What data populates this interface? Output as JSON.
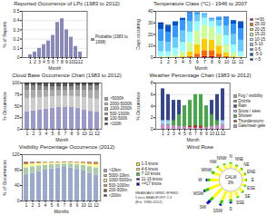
{
  "chart_data": [
    {
      "type": "bar",
      "title": "Reported Occurrence of LPc (1983 to 2012)",
      "xlabel": "Month",
      "ylabel": "% of Reports",
      "categories": [
        "1",
        "2",
        "3",
        "4",
        "5",
        "6",
        "7",
        "8",
        "9",
        "10",
        "11",
        "12"
      ],
      "series": [
        {
          "name": "Probable (1983 to 1998)",
          "color": "#8888bb",
          "values": [
            0.03,
            0.06,
            0.1,
            0.14,
            0.18,
            0.24,
            0.38,
            0.42,
            0.3,
            0.22,
            0.12,
            0.06
          ]
        }
      ],
      "ylim": [
        0,
        0.5
      ],
      "yticks": [
        0,
        0.1,
        0.2,
        0.3,
        0.4,
        0.5
      ],
      "grid": true,
      "legend": "right"
    },
    {
      "type": "bar",
      "title": "Temperature Class (°C) - 1946 to 2007",
      "xlabel": "Month",
      "ylabel": "Days occurring",
      "categories": [
        "1",
        "2",
        "3",
        "4",
        "5",
        "6",
        "7",
        "8",
        "9",
        "10",
        "11",
        "12"
      ],
      "stacked": true,
      "series": [
        {
          "name": ">=30",
          "color": "#cc0000",
          "values": [
            0,
            0,
            0,
            0,
            0,
            0,
            1,
            1,
            0,
            0,
            0,
            0
          ]
        },
        {
          "name": "25-30",
          "color": "#ff6600",
          "values": [
            0,
            0,
            0,
            0,
            1,
            3,
            5,
            5,
            3,
            1,
            0,
            0
          ]
        },
        {
          "name": "20-25",
          "color": "#ffcc00",
          "values": [
            0,
            0,
            0,
            1,
            4,
            8,
            10,
            9,
            7,
            3,
            1,
            0
          ]
        },
        {
          "name": "15-20",
          "color": "#ccff99",
          "values": [
            1,
            1,
            2,
            4,
            8,
            12,
            12,
            11,
            10,
            7,
            3,
            1
          ]
        },
        {
          "name": "10-15",
          "color": "#99ffff",
          "values": [
            4,
            4,
            6,
            8,
            9,
            8,
            6,
            5,
            7,
            8,
            7,
            4
          ]
        },
        {
          "name": "5-10",
          "color": "#66ccff",
          "values": [
            9,
            8,
            9,
            10,
            9,
            6,
            3,
            2,
            5,
            8,
            9,
            10
          ]
        },
        {
          "name": "0-5",
          "color": "#3399ff",
          "values": [
            10,
            9,
            10,
            9,
            7,
            2,
            1,
            1,
            3,
            7,
            9,
            10
          ]
        },
        {
          "name": "-5-0",
          "color": "#0055cc",
          "values": [
            5,
            5,
            4,
            2,
            1,
            0,
            0,
            0,
            0,
            1,
            3,
            5
          ]
        },
        {
          "name": "<-5",
          "color": "#003399",
          "values": [
            1,
            1,
            0,
            0,
            0,
            0,
            0,
            0,
            0,
            0,
            0,
            1
          ]
        }
      ],
      "ylim": [
        0,
        40
      ],
      "yticks": [
        0,
        10,
        20,
        30,
        40
      ],
      "grid": true,
      "legend": "right"
    },
    {
      "type": "bar",
      "title": "Cloud Base Occurrence Chart (1983 to 2012)",
      "xlabel": "Month",
      "ylabel": "% Occurrence",
      "categories": [
        "1",
        "2",
        "3",
        "4",
        "5",
        "6",
        "7",
        "8",
        "9",
        "10",
        "11",
        "12"
      ],
      "stacked": true,
      "series": [
        {
          "name": ">5000ft",
          "color": "#9999cc",
          "values": [
            38,
            40,
            42,
            44,
            46,
            48,
            48,
            47,
            45,
            42,
            39,
            37
          ]
        },
        {
          "name": "2000-5000ft",
          "color": "#cccccc",
          "values": [
            28,
            27,
            26,
            25,
            24,
            23,
            23,
            24,
            25,
            26,
            27,
            28
          ]
        },
        {
          "name": "1000-2000ft",
          "color": "#aaaaaa",
          "values": [
            18,
            17,
            16,
            14,
            13,
            12,
            12,
            13,
            14,
            16,
            17,
            18
          ]
        },
        {
          "name": "500-1000ft",
          "color": "#888888",
          "values": [
            10,
            9,
            9,
            8,
            8,
            8,
            8,
            8,
            9,
            9,
            10,
            10
          ]
        },
        {
          "name": "100-500ft",
          "color": "#555555",
          "values": [
            4,
            4,
            4,
            6,
            6,
            6,
            6,
            5,
            5,
            5,
            5,
            5
          ]
        },
        {
          "name": "<100ft",
          "color": "#222222",
          "values": [
            2,
            3,
            3,
            3,
            3,
            3,
            3,
            3,
            2,
            2,
            2,
            2
          ]
        }
      ],
      "ylim": [
        0,
        100
      ],
      "yticks": [
        0,
        25,
        50,
        75,
        100
      ],
      "grid": true,
      "legend": "right"
    },
    {
      "type": "bar",
      "title": "Weather Percentage Chart (1983 to 2012)",
      "xlabel": "Month",
      "ylabel": "% Occurrence",
      "categories": [
        "1",
        "2",
        "3",
        "4",
        "5",
        "6",
        "7",
        "8",
        "9",
        "10",
        "11",
        "12"
      ],
      "stacked": false,
      "series": [
        {
          "name": "Fog / visibility",
          "color": "#aaaaaa",
          "values": [
            1.2,
            0.9,
            0.6,
            0.4,
            0.2,
            0.1,
            0.1,
            0.1,
            0.3,
            0.5,
            0.8,
            1.1
          ]
        },
        {
          "name": "Drizzle",
          "color": "#6688bb",
          "values": [
            2.5,
            2.2,
            2.0,
            1.8,
            1.4,
            1.1,
            1.0,
            1.0,
            1.4,
            1.8,
            2.2,
            2.5
          ]
        },
        {
          "name": "Rain",
          "color": "#334499",
          "values": [
            7,
            6,
            5,
            5,
            4,
            3,
            3,
            3,
            4,
            5,
            6,
            7
          ]
        },
        {
          "name": "Snow / sleet",
          "color": "#99ccff",
          "values": [
            1.5,
            1.5,
            1.0,
            0.5,
            0.1,
            0,
            0,
            0,
            0,
            0.2,
            0.8,
            1.5
          ]
        },
        {
          "name": "Shower",
          "color": "#44aa44",
          "values": [
            0.8,
            0.8,
            1.5,
            2.5,
            4,
            5,
            6,
            6,
            4,
            2.5,
            1.5,
            0.8
          ]
        },
        {
          "name": "Thunderstorm",
          "color": "#cc2222",
          "values": [
            0.1,
            0.1,
            0.1,
            0.2,
            0.3,
            0.5,
            0.6,
            0.5,
            0.3,
            0.2,
            0.1,
            0.1
          ]
        },
        {
          "name": "Gale/near-gale",
          "color": "#cc88cc",
          "values": [
            0.8,
            0.7,
            0.6,
            0.5,
            0.4,
            0.3,
            0.2,
            0.2,
            0.3,
            0.5,
            0.6,
            0.8
          ]
        }
      ],
      "ylim": [
        0,
        8
      ],
      "yticks": [
        0,
        2,
        4,
        6,
        8
      ],
      "grid": true,
      "legend": "right"
    },
    {
      "type": "bar",
      "title": "Visibility Percentage Occurrence (2012)",
      "xlabel": "Months",
      "ylabel": "% of Occurrences",
      "categories": [
        "1",
        "2",
        "3",
        "4",
        "5",
        "6",
        "7",
        "8",
        "9",
        "10",
        "11",
        "12"
      ],
      "stacked": true,
      "series": [
        {
          "name": ">10km",
          "color": "#99aacc",
          "values": [
            68,
            72,
            76,
            80,
            83,
            86,
            87,
            86,
            82,
            78,
            72,
            67
          ]
        },
        {
          "name": "5000-10km",
          "color": "#aaccaa",
          "values": [
            18,
            17,
            15,
            13,
            11,
            9,
            9,
            10,
            12,
            14,
            17,
            19
          ]
        },
        {
          "name": "1000-5000m",
          "color": "#ffff88",
          "values": [
            8,
            7,
            6,
            5,
            4,
            3,
            3,
            3,
            4,
            5,
            6,
            8
          ]
        },
        {
          "name": "500-1000m",
          "color": "#dd8833",
          "values": [
            3,
            2,
            2,
            1,
            1,
            1,
            1,
            1,
            1,
            2,
            3,
            4
          ]
        },
        {
          "name": "200-500m",
          "color": "#994422",
          "values": [
            2,
            1,
            1,
            0.5,
            0.5,
            0.5,
            0.5,
            0.5,
            0.5,
            0.5,
            1,
            1.5
          ]
        },
        {
          "name": "<200m",
          "color": "#333333",
          "values": [
            1,
            1,
            0.5,
            0.5,
            0.5,
            0.5,
            0.5,
            0.5,
            0.5,
            0.5,
            1,
            0.5
          ]
        }
      ],
      "ylim": [
        0,
        120
      ],
      "yticks": [
        0,
        40,
        80,
        120
      ],
      "grid": true,
      "legend": "right"
    },
    {
      "type": "wind_rose",
      "title": "Wind Rose",
      "categories": [
        "N",
        "NNE",
        "NE",
        "ENE",
        "E",
        "ESE",
        "SE",
        "SSE",
        "S",
        "SSW",
        "SW",
        "WSW",
        "W",
        "WNW",
        "NW",
        "NNW"
      ],
      "stacked": true,
      "series": [
        {
          "name": "1-3 knots",
          "color": "#ffff00",
          "values": [
            2,
            1,
            1,
            1,
            1,
            1,
            2,
            2,
            2,
            3,
            4,
            4,
            3,
            2,
            2,
            2
          ]
        },
        {
          "name": "4-6 knots",
          "color": "#ffff00",
          "values": [
            1,
            1,
            1,
            1,
            1,
            1,
            1,
            2,
            3,
            4,
            5,
            4,
            3,
            2,
            2,
            1
          ]
        },
        {
          "name": "7-10 knots",
          "color": "#33cc00",
          "values": [
            1,
            1,
            1,
            1,
            1,
            1,
            1,
            1,
            2,
            3,
            3,
            3,
            2,
            2,
            1,
            1
          ]
        },
        {
          "name": "11-16 knots",
          "color": "#0000cc",
          "values": [
            0,
            0,
            0,
            0,
            0,
            0,
            0,
            0,
            1,
            1,
            2,
            1,
            1,
            0,
            0,
            0
          ]
        },
        {
          "name": ">=17 knots",
          "color": "#0000cc",
          "values": [
            0,
            0,
            0,
            0,
            0,
            0,
            0,
            0,
            0,
            0,
            1,
            0,
            0,
            0,
            0,
            0
          ]
        }
      ],
      "calm_text": "CALM",
      "calm": {
        "value": 3,
        "label": "3%"
      },
      "annotations": [
        "MEAN/AVG WIND SPEED\n5 knts BEAUFORT 2-3\n(Est. 1980-2012)"
      ],
      "legend": "left"
    }
  ]
}
